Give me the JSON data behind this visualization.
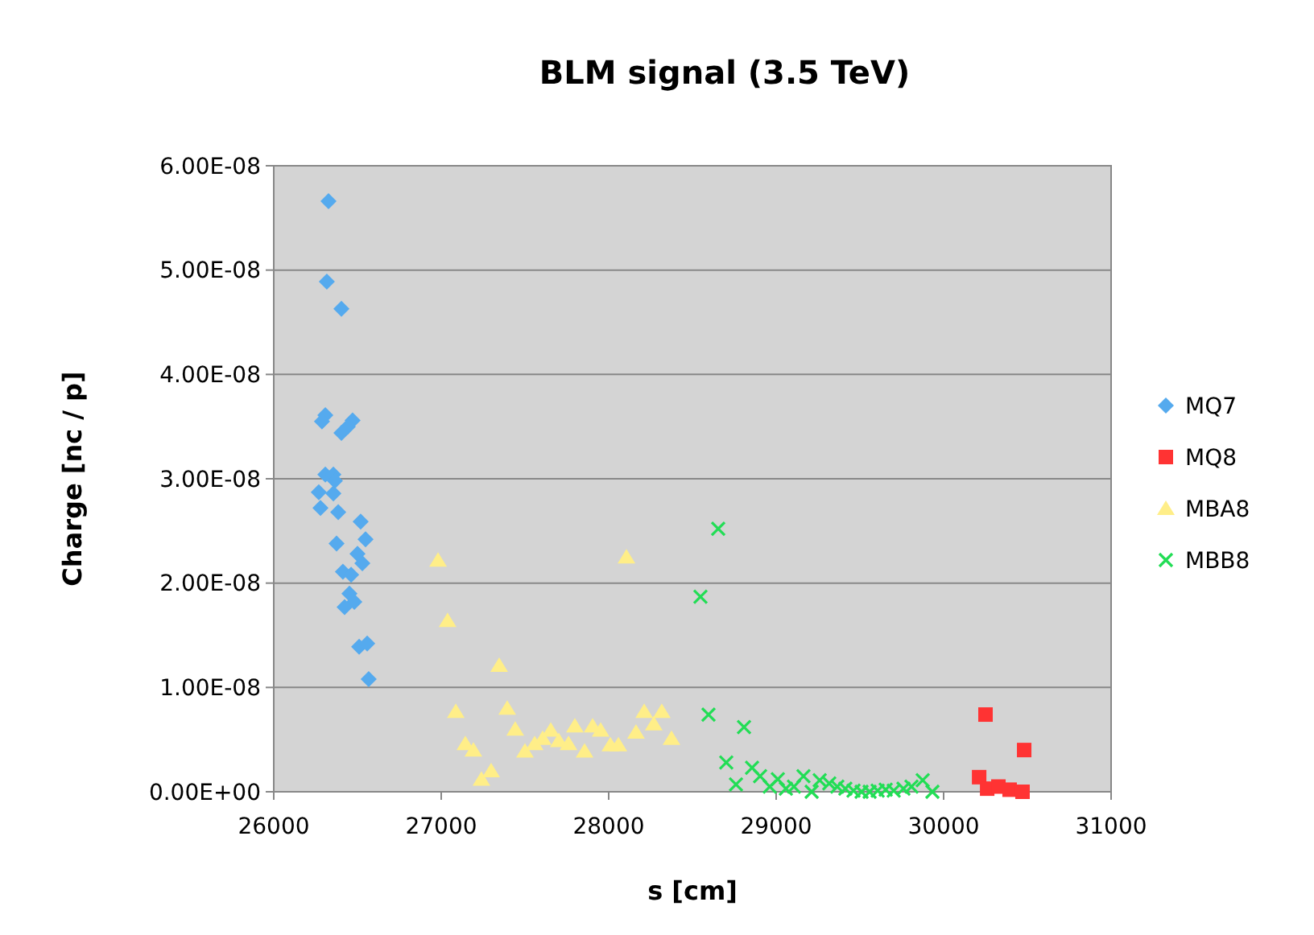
{
  "chart_data": {
    "type": "scatter",
    "title": "BLM signal (3.5 TeV)",
    "xlabel": "s [cm]",
    "ylabel": "Charge [nc / p]",
    "xlim": [
      26000,
      31000
    ],
    "xticks": [
      26000,
      27000,
      28000,
      29000,
      30000,
      31000
    ],
    "ylim": [
      0,
      6e-08
    ],
    "yticks": [
      {
        "value": 0,
        "label": "0.00E+00"
      },
      {
        "value": 1e-08,
        "label": "1.00E-08"
      },
      {
        "value": 2e-08,
        "label": "2.00E-08"
      },
      {
        "value": 3e-08,
        "label": "3.00E-08"
      },
      {
        "value": 4e-08,
        "label": "4.00E-08"
      },
      {
        "value": 5e-08,
        "label": "5.00E-08"
      },
      {
        "value": 6e-08,
        "label": "6.00E-08"
      }
    ],
    "grid": "y",
    "legend": "right",
    "series": [
      {
        "name": "MQ7",
        "color": "#55aaee",
        "marker": "diamond",
        "x": [
          26327,
          26317,
          26404,
          26308,
          26288,
          26471,
          26442,
          26404,
          26308,
          26356,
          26365,
          26269,
          26356,
          26279,
          26385,
          26519,
          26548,
          26375,
          26500,
          26529,
          26413,
          26462,
          26452,
          26481,
          26423,
          26510,
          26558,
          26567
        ],
        "values": [
          5.66e-08,
          4.89e-08,
          4.63e-08,
          3.61e-08,
          3.55e-08,
          3.56e-08,
          3.5e-08,
          3.44e-08,
          3.04e-08,
          3.04e-08,
          2.98e-08,
          2.87e-08,
          2.86e-08,
          2.72e-08,
          2.68e-08,
          2.59e-08,
          2.42e-08,
          2.38e-08,
          2.28e-08,
          2.19e-08,
          2.11e-08,
          2.08e-08,
          1.9e-08,
          1.82e-08,
          1.77e-08,
          1.39e-08,
          1.42e-08,
          1.08e-08
        ]
      },
      {
        "name": "MQ8",
        "color": "#ff3333",
        "marker": "square",
        "x": [
          30250,
          30481,
          30212,
          30260,
          30327,
          30394,
          30471
        ],
        "values": [
          7.4e-09,
          4e-09,
          1.4e-09,
          3e-10,
          5e-10,
          2e-10,
          0
        ]
      },
      {
        "name": "MBA8",
        "color": "#ffee88",
        "marker": "triangle",
        "x": [
          26981,
          28106,
          27038,
          27346,
          27087,
          27394,
          27442,
          27144,
          27192,
          27298,
          27240,
          27500,
          27558,
          27606,
          27654,
          27702,
          27760,
          27798,
          27856,
          27904,
          27952,
          28010,
          28058,
          28163,
          28212,
          28269,
          28317,
          28375
        ],
        "values": [
          2.22e-08,
          2.25e-08,
          1.64e-08,
          1.21e-08,
          7.7e-09,
          8e-09,
          6e-09,
          4.6e-09,
          4e-09,
          2e-09,
          1.2e-09,
          3.9e-09,
          4.6e-09,
          5.1e-09,
          5.9e-09,
          4.9e-09,
          4.6e-09,
          6.3e-09,
          3.9e-09,
          6.3e-09,
          5.9e-09,
          4.5e-09,
          4.5e-09,
          5.7e-09,
          7.7e-09,
          6.5e-09,
          7.7e-09,
          5.1e-09
        ]
      },
      {
        "name": "MBB8",
        "color": "#22dd55",
        "marker": "cross",
        "x": [
          28654,
          28548,
          28596,
          28808,
          28702,
          28760,
          28856,
          28904,
          28962,
          29010,
          29058,
          29106,
          29163,
          29212,
          29260,
          29317,
          29365,
          29413,
          29462,
          29510,
          29558,
          29606,
          29654,
          29702,
          29760,
          29808,
          29875,
          29933
        ],
        "values": [
          2.52e-08,
          1.87e-08,
          7.4e-09,
          6.2e-09,
          2.8e-09,
          7e-10,
          2.3e-09,
          1.5e-09,
          5e-10,
          1.2e-09,
          3e-10,
          5e-10,
          1.5e-09,
          0,
          1.1e-09,
          8e-10,
          5e-10,
          3e-10,
          1e-10,
          0,
          0,
          1e-10,
          2e-10,
          1e-10,
          3e-10,
          5e-10,
          1.1e-09,
          0
        ]
      }
    ]
  }
}
